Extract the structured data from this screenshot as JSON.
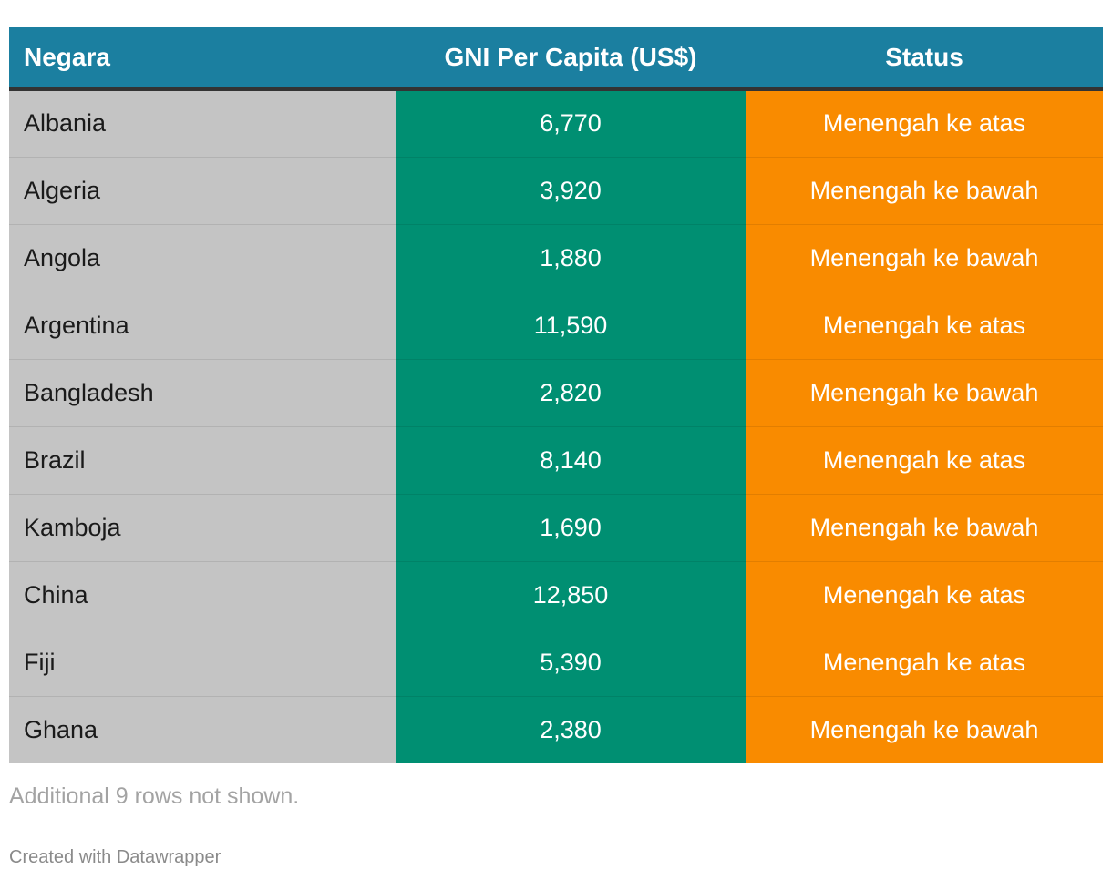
{
  "table": {
    "headers": [
      "Negara",
      "GNI Per Capita (US$)",
      "Status"
    ],
    "rows": [
      [
        "Albania",
        "6,770",
        "Menengah ke atas"
      ],
      [
        "Algeria",
        "3,920",
        "Menengah ke bawah"
      ],
      [
        "Angola",
        "1,880",
        "Menengah ke bawah"
      ],
      [
        "Argentina",
        "11,590",
        "Menengah ke atas"
      ],
      [
        "Bangladesh",
        "2,820",
        "Menengah ke bawah"
      ],
      [
        "Brazil",
        "8,140",
        "Menengah ke atas"
      ],
      [
        "Kamboja",
        "1,690",
        "Menengah ke bawah"
      ],
      [
        "China",
        "12,850",
        "Menengah ke atas"
      ],
      [
        "Fiji",
        "5,390",
        "Menengah ke atas"
      ],
      [
        "Ghana",
        "2,380",
        "Menengah ke bawah"
      ]
    ]
  },
  "footer": {
    "note": "Additional 9 rows not shown.",
    "credit": "Created with Datawrapper"
  },
  "colors": {
    "header": "#1b7fa0",
    "country_column": "#c4c4c4",
    "gni_column": "#008f72",
    "status_column": "#f98b00"
  }
}
